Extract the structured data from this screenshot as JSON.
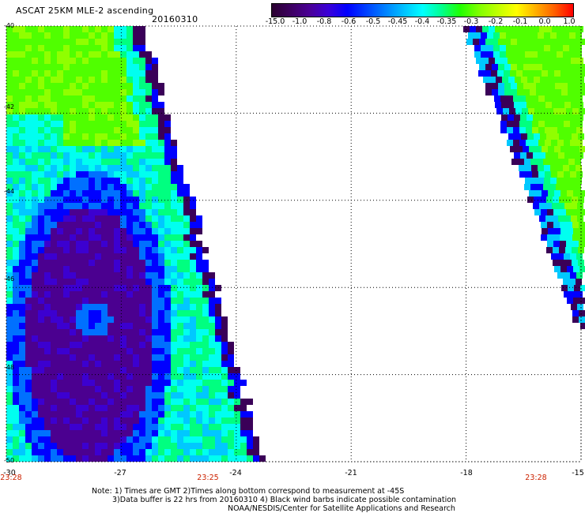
{
  "header": {
    "title": "ASCAT 25KM MLE-2 ascending",
    "date": "20160310"
  },
  "colorbar": {
    "labels": [
      "-15.0",
      "-1.0",
      "-0.8",
      "-0.6",
      "-0.5",
      "-0.45",
      "-0.4",
      "-0.35",
      "-0.3",
      "-0.2",
      "-0.1",
      "0.0",
      "1.0"
    ],
    "colors": [
      "#2a0040",
      "#4a0096",
      "#3a00d8",
      "#0000ff",
      "#0060ff",
      "#00c0ff",
      "#00ffe0",
      "#00ff80",
      "#30ff00",
      "#a0ff00",
      "#ffff00",
      "#ff9000",
      "#ff2000"
    ]
  },
  "axes": {
    "lat_labels": [
      "-40",
      "-42",
      "-44",
      "-46",
      "-48",
      "-50"
    ],
    "lon_labels": [
      "-30",
      "-27",
      "-24",
      "-21",
      "-18",
      "-15"
    ],
    "time_labels": [
      "23:28",
      "23:25",
      "23:28"
    ]
  },
  "notes": {
    "line1": "Note: 1) Times are GMT 2)Times along bottom correspond to measurement at -45S",
    "line2": "3)Data buffer is 22 hrs from 20160310 4) Black wind barbs indicate possible contamination",
    "line3": "NOAA/NESDIS/Center for Satellite Applications and Research"
  }
}
